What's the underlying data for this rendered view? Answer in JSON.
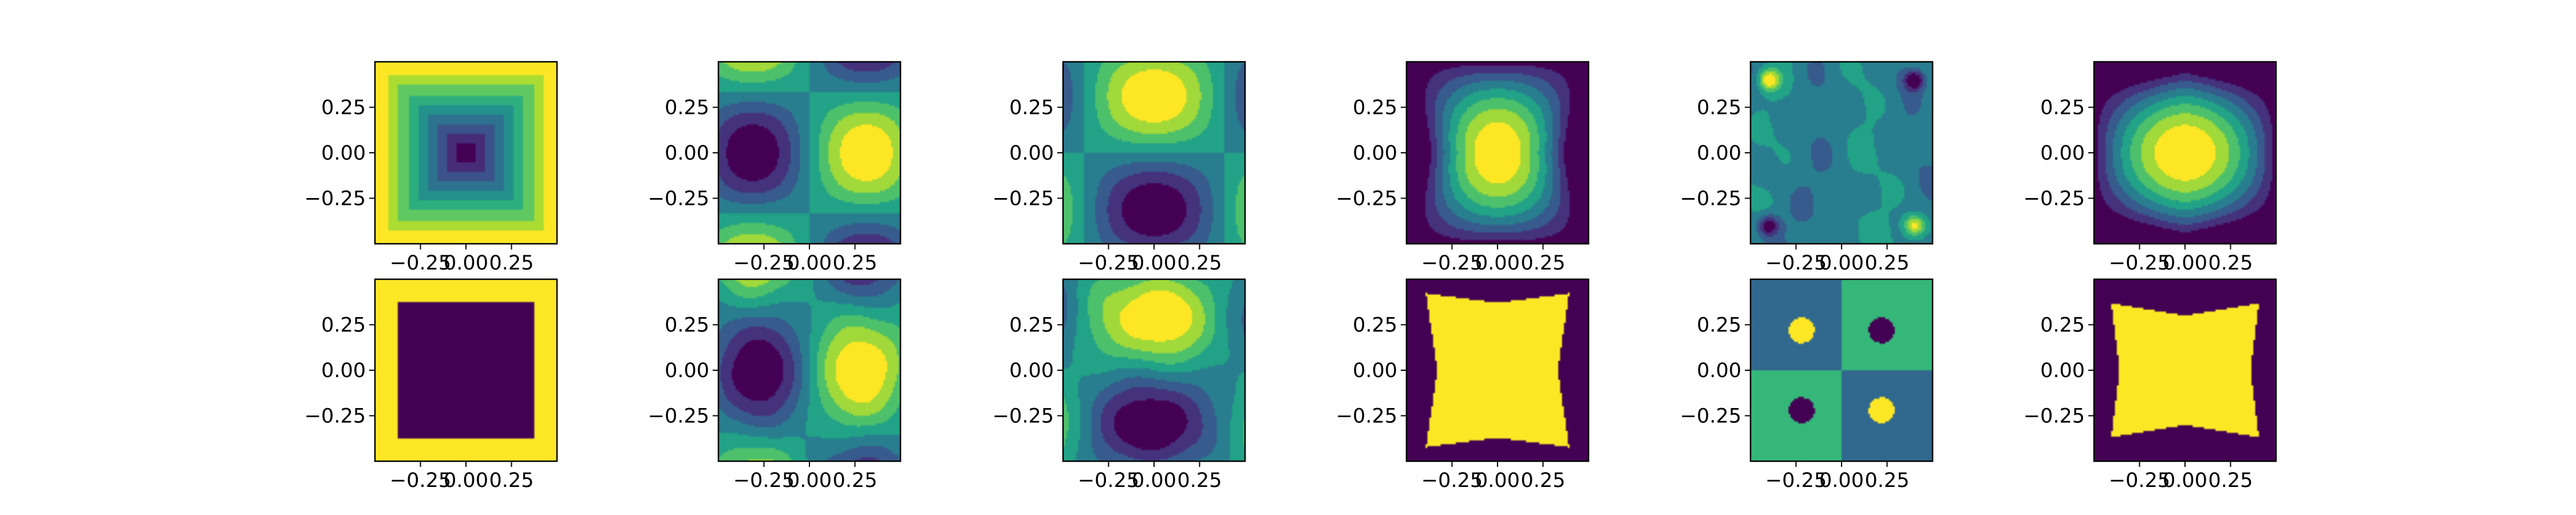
{
  "figure": {
    "rows": 2,
    "cols": 6,
    "colormap": "viridis",
    "axis_color": "#000000",
    "background": "#ffffff"
  },
  "chart_data": [
    {
      "type": "heatmap",
      "panel": "r1c1",
      "title": "",
      "xlabel": "",
      "ylabel": "",
      "xlim": [
        -0.5,
        0.5
      ],
      "ylim": [
        -0.5,
        0.5
      ],
      "xticks": [
        -0.25,
        0.0,
        0.25
      ],
      "xtick_labels": [
        "−0.25",
        "0.00",
        "0.25"
      ],
      "yticks": [
        -0.25,
        0.0,
        0.25
      ],
      "ytick_labels": [
        "−0.25",
        "0.00",
        "0.25"
      ],
      "pattern": "bowl",
      "levels": 9,
      "value_range": [
        0,
        1
      ]
    },
    {
      "type": "heatmap",
      "panel": "r1c2",
      "title": "",
      "xlabel": "",
      "ylabel": "",
      "xlim": [
        -0.5,
        0.5
      ],
      "ylim": [
        -0.5,
        0.5
      ],
      "xticks": [
        -0.25,
        0.0,
        0.25
      ],
      "xtick_labels": [
        "−0.25",
        "0.00",
        "0.25"
      ],
      "yticks": [
        -0.25,
        0.0,
        0.25
      ],
      "ytick_labels": [
        "−0.25",
        "0.00",
        "0.25"
      ],
      "pattern": "dipole_x",
      "levels": 8,
      "value_range": [
        0,
        1
      ]
    },
    {
      "type": "heatmap",
      "panel": "r1c3",
      "title": "",
      "xlabel": "",
      "ylabel": "",
      "xlim": [
        -0.5,
        0.5
      ],
      "ylim": [
        -0.5,
        0.5
      ],
      "xticks": [
        -0.25,
        0.0,
        0.25
      ],
      "xtick_labels": [
        "−0.25",
        "0.00",
        "0.25"
      ],
      "yticks": [
        -0.25,
        0.0,
        0.25
      ],
      "ytick_labels": [
        "−0.25",
        "0.00",
        "0.25"
      ],
      "pattern": "dipole_y",
      "levels": 8,
      "value_range": [
        0,
        1
      ]
    },
    {
      "type": "heatmap",
      "panel": "r1c4",
      "title": "",
      "xlabel": "",
      "ylabel": "",
      "xlim": [
        -0.5,
        0.5
      ],
      "ylim": [
        -0.5,
        0.5
      ],
      "xticks": [
        -0.25,
        0.0,
        0.25
      ],
      "xtick_labels": [
        "−0.25",
        "0.00",
        "0.25"
      ],
      "yticks": [
        -0.25,
        0.0,
        0.25
      ],
      "ytick_labels": [
        "−0.25",
        "0.00",
        "0.25"
      ],
      "pattern": "hill_hourglass",
      "levels": 8,
      "value_range": [
        0,
        1
      ]
    },
    {
      "type": "heatmap",
      "panel": "r1c5",
      "title": "",
      "xlabel": "",
      "ylabel": "",
      "xlim": [
        -0.5,
        0.5
      ],
      "ylim": [
        -0.5,
        0.5
      ],
      "xticks": [
        -0.25,
        0.0,
        0.25
      ],
      "xtick_labels": [
        "−0.25",
        "0.00",
        "0.25"
      ],
      "yticks": [
        -0.25,
        0.0,
        0.25
      ],
      "ytick_labels": [
        "−0.25",
        "0.00",
        "0.25"
      ],
      "pattern": "corners_noise",
      "levels": 8,
      "value_range": [
        0,
        1
      ]
    },
    {
      "type": "heatmap",
      "panel": "r1c6",
      "title": "",
      "xlabel": "",
      "ylabel": "",
      "xlim": [
        -0.5,
        0.5
      ],
      "ylim": [
        -0.5,
        0.5
      ],
      "xticks": [
        -0.25,
        0.0,
        0.25
      ],
      "xtick_labels": [
        "−0.25",
        "0.00",
        "0.25"
      ],
      "yticks": [
        -0.25,
        0.0,
        0.25
      ],
      "ytick_labels": [
        "−0.25",
        "0.00",
        "0.25"
      ],
      "pattern": "hill_wide",
      "levels": 8,
      "value_range": [
        0,
        1
      ]
    },
    {
      "type": "heatmap",
      "panel": "r2c1",
      "title": "",
      "xlabel": "",
      "ylabel": "",
      "xlim": [
        -0.5,
        0.5
      ],
      "ylim": [
        -0.5,
        0.5
      ],
      "xticks": [
        -0.25,
        0.0,
        0.25
      ],
      "xtick_labels": [
        "−0.25",
        "0.00",
        "0.25"
      ],
      "yticks": [
        -0.25,
        0.0,
        0.25
      ],
      "ytick_labels": [
        "−0.25",
        "0.00",
        "0.25"
      ],
      "pattern": "binary_square_low",
      "levels": 2,
      "value_range": [
        0,
        1
      ]
    },
    {
      "type": "heatmap",
      "panel": "r2c2",
      "title": "",
      "xlabel": "",
      "ylabel": "",
      "xlim": [
        -0.5,
        0.5
      ],
      "ylim": [
        -0.5,
        0.5
      ],
      "xticks": [
        -0.25,
        0.0,
        0.25
      ],
      "xtick_labels": [
        "−0.25",
        "0.00",
        "0.25"
      ],
      "yticks": [
        -0.25,
        0.0,
        0.25
      ],
      "ytick_labels": [
        "−0.25",
        "0.00",
        "0.25"
      ],
      "pattern": "dipole_x_noisy",
      "levels": 8,
      "value_range": [
        0,
        1
      ]
    },
    {
      "type": "heatmap",
      "panel": "r2c3",
      "title": "",
      "xlabel": "",
      "ylabel": "",
      "xlim": [
        -0.5,
        0.5
      ],
      "ylim": [
        -0.5,
        0.5
      ],
      "xticks": [
        -0.25,
        0.0,
        0.25
      ],
      "xtick_labels": [
        "−0.25",
        "0.00",
        "0.25"
      ],
      "yticks": [
        -0.25,
        0.0,
        0.25
      ],
      "ytick_labels": [
        "−0.25",
        "0.00",
        "0.25"
      ],
      "pattern": "dipole_y_noisy",
      "levels": 8,
      "value_range": [
        0,
        1
      ]
    },
    {
      "type": "heatmap",
      "panel": "r2c4",
      "title": "",
      "xlabel": "",
      "ylabel": "",
      "xlim": [
        -0.5,
        0.5
      ],
      "ylim": [
        -0.5,
        0.5
      ],
      "xticks": [
        -0.25,
        0.0,
        0.25
      ],
      "xtick_labels": [
        "−0.25",
        "0.00",
        "0.25"
      ],
      "yticks": [
        -0.25,
        0.0,
        0.25
      ],
      "ytick_labels": [
        "−0.25",
        "0.00",
        "0.25"
      ],
      "pattern": "binary_hourglass_high",
      "levels": 2,
      "value_range": [
        0,
        1
      ]
    },
    {
      "type": "heatmap",
      "panel": "r2c5",
      "title": "",
      "xlabel": "",
      "ylabel": "",
      "xlim": [
        -0.5,
        0.5
      ],
      "ylim": [
        -0.5,
        0.5
      ],
      "xticks": [
        -0.25,
        0.0,
        0.25
      ],
      "xtick_labels": [
        "−0.25",
        "0.00",
        "0.25"
      ],
      "yticks": [
        -0.25,
        0.0,
        0.25
      ],
      "ytick_labels": [
        "−0.25",
        "0.00",
        "0.25"
      ],
      "pattern": "quadrants",
      "levels": 4,
      "value_range": [
        0,
        1
      ]
    },
    {
      "type": "heatmap",
      "panel": "r2c6",
      "title": "",
      "xlabel": "",
      "ylabel": "",
      "xlim": [
        -0.5,
        0.5
      ],
      "ylim": [
        -0.5,
        0.5
      ],
      "xticks": [
        -0.25,
        0.0,
        0.25
      ],
      "xtick_labels": [
        "−0.25",
        "0.00",
        "0.25"
      ],
      "yticks": [
        -0.25,
        0.0,
        0.25
      ],
      "ytick_labels": [
        "−0.25",
        "0.00",
        "0.25"
      ],
      "pattern": "binary_hourglass_wide",
      "levels": 2,
      "value_range": [
        0,
        1
      ]
    }
  ]
}
